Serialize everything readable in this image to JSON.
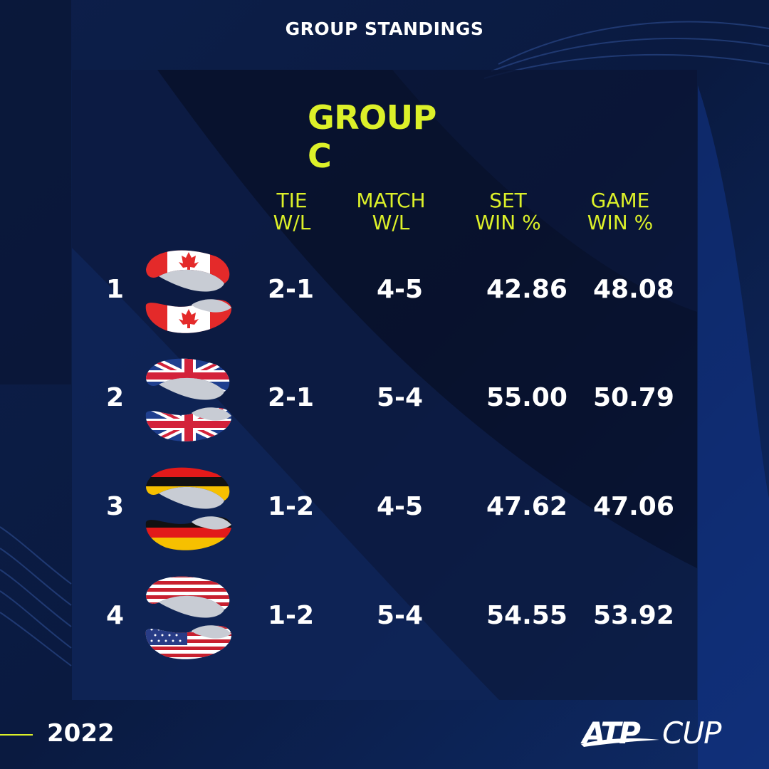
{
  "header": {
    "title": "GROUP STANDINGS"
  },
  "group": {
    "title": "GROUP C"
  },
  "columns": [
    {
      "line1": "TIE",
      "line2": "W/L"
    },
    {
      "line1": "MATCH",
      "line2": "W/L"
    },
    {
      "line1": "SET",
      "line2": "WIN %"
    },
    {
      "line1": "GAME",
      "line2": "WIN %"
    }
  ],
  "rows": [
    {
      "rank": "1",
      "flag": "canada-flag-icon",
      "tie": "2-1",
      "match": "4-5",
      "set": "42.86",
      "game": "48.08"
    },
    {
      "rank": "2",
      "flag": "great-britain-flag-icon",
      "tie": "2-1",
      "match": "5-4",
      "set": "55.00",
      "game": "50.79"
    },
    {
      "rank": "3",
      "flag": "germany-flag-icon",
      "tie": "1-2",
      "match": "4-5",
      "set": "47.62",
      "game": "47.06"
    },
    {
      "rank": "4",
      "flag": "usa-flag-icon",
      "tie": "1-2",
      "match": "5-4",
      "set": "54.55",
      "game": "53.92"
    }
  ],
  "footer": {
    "year": "2022",
    "logo_atp": "ATP",
    "logo_cup": "CUP"
  },
  "colors": {
    "accent": "#dcf029",
    "background": "#0b1a3d",
    "text": "#ffffff"
  }
}
